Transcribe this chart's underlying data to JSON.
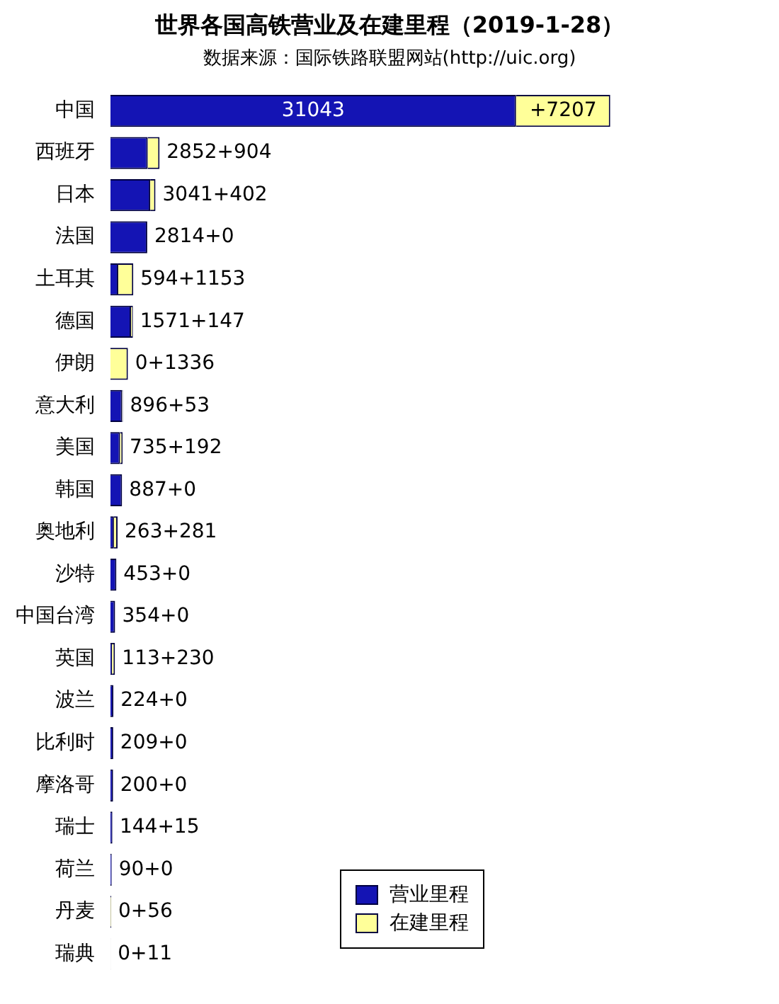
{
  "chart_data": {
    "type": "bar",
    "orientation": "horizontal",
    "stacked": true,
    "title": "世界各国高铁营业及在建里程（2019-1-28）",
    "annotations": [
      "数据来源：国际铁路联盟网站(http://uic.org)"
    ],
    "categories": [
      "中国",
      "西班牙",
      "日本",
      "法国",
      "土耳其",
      "德国",
      "伊朗",
      "意大利",
      "美国",
      "韩国",
      "奥地利",
      "沙特",
      "中国台湾",
      "英国",
      "波兰",
      "比利时",
      "摩洛哥",
      "瑞士",
      "荷兰",
      "丹麦",
      "瑞典"
    ],
    "series": [
      {
        "name": "营业里程",
        "color": "#1414b4",
        "values": [
          31043,
          2852,
          3041,
          2814,
          594,
          1571,
          0,
          896,
          735,
          887,
          263,
          453,
          354,
          113,
          224,
          209,
          200,
          144,
          90,
          0,
          0
        ],
        "value_labels": [
          "31043",
          "2852",
          "3041",
          "2814",
          "594",
          "1571",
          "0",
          "896",
          "735",
          "887",
          "263",
          "453",
          "354",
          "113",
          "224",
          "209",
          "200",
          "144",
          "90",
          "0",
          "0"
        ]
      },
      {
        "name": "在建里程",
        "color": "#ffff99",
        "values": [
          7207,
          904,
          402,
          0,
          1153,
          147,
          1336,
          53,
          192,
          0,
          281,
          0,
          0,
          230,
          0,
          0,
          0,
          15,
          0,
          56,
          11
        ],
        "value_labels": [
          "+7207",
          "+904",
          "+402",
          "+0",
          "+1153",
          "+147",
          "+1336",
          "+53",
          "+192",
          "+0",
          "+281",
          "+0",
          "+0",
          "+230",
          "+0",
          "+0",
          "+0",
          "+15",
          "+0",
          "+56",
          "+11"
        ]
      }
    ],
    "tick_labels": "y",
    "legend": "bottom"
  }
}
